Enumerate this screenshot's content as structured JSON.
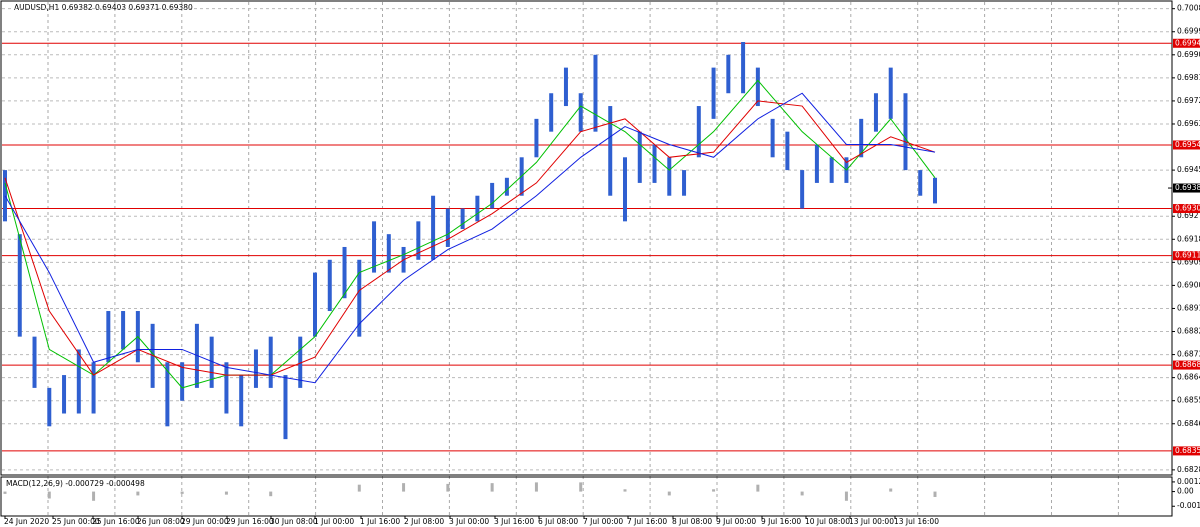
{
  "chart_data": {
    "type": "ohlc",
    "title": "AUDUSD,H1  0.69382 0.69403 0.69371 0.69380",
    "bar_color": "#2f5fd0",
    "bars": {
      "low": [
        0.6925,
        0.688,
        0.686,
        0.6845,
        0.685,
        0.685,
        0.685,
        0.687,
        0.6875,
        0.687,
        0.686,
        0.6845,
        0.6855,
        0.686,
        0.686,
        0.685,
        0.6845,
        0.686,
        0.686,
        0.684,
        0.686,
        0.688,
        0.689,
        0.6895,
        0.688,
        0.6905,
        0.6905,
        0.6905,
        0.691,
        0.691,
        0.6915,
        0.6922,
        0.6925,
        0.693,
        0.6935,
        0.6935,
        0.695,
        0.696,
        0.697,
        0.696,
        0.696,
        0.6935,
        0.6925,
        0.694,
        0.694,
        0.6935,
        0.6935,
        0.695,
        0.6965,
        0.6975,
        0.6975,
        0.697,
        0.695,
        0.6945,
        0.693,
        0.694,
        0.694,
        0.694,
        0.695,
        0.696,
        0.6965,
        0.6945,
        0.6935,
        0.6932
      ],
      "high": [
        0.6945,
        0.692,
        0.688,
        0.686,
        0.6865,
        0.6875,
        0.687,
        0.689,
        0.689,
        0.689,
        0.6885,
        0.687,
        0.687,
        0.6885,
        0.688,
        0.687,
        0.6865,
        0.6875,
        0.688,
        0.6865,
        0.688,
        0.6905,
        0.691,
        0.6915,
        0.691,
        0.6925,
        0.692,
        0.6915,
        0.6925,
        0.6935,
        0.693,
        0.693,
        0.6935,
        0.694,
        0.6942,
        0.695,
        0.6965,
        0.6975,
        0.6985,
        0.6975,
        0.699,
        0.697,
        0.695,
        0.696,
        0.6955,
        0.695,
        0.6945,
        0.697,
        0.6985,
        0.699,
        0.6995,
        0.6985,
        0.6965,
        0.696,
        0.6945,
        0.6955,
        0.695,
        0.695,
        0.6965,
        0.6975,
        0.6985,
        0.6975,
        0.6945,
        0.6942
      ]
    },
    "series": [
      {
        "color": "#00c000",
        "values": [
          0.694,
          0.6875,
          0.6865,
          0.688,
          0.686,
          0.6865,
          0.6865,
          0.688,
          0.6905,
          0.6912,
          0.692,
          0.6932,
          0.6948,
          0.697,
          0.696,
          0.6945,
          0.696,
          0.698,
          0.696,
          0.6945,
          0.6965,
          0.6942
        ]
      },
      {
        "color": "#e00000",
        "values": [
          0.6942,
          0.689,
          0.6865,
          0.6875,
          0.6868,
          0.6865,
          0.6865,
          0.6872,
          0.6898,
          0.691,
          0.6918,
          0.6928,
          0.694,
          0.696,
          0.6965,
          0.695,
          0.6952,
          0.6972,
          0.697,
          0.6948,
          0.6958,
          0.6952
        ]
      },
      {
        "color": "#1020e0",
        "values": [
          0.6935,
          0.6905,
          0.687,
          0.6875,
          0.6875,
          0.6868,
          0.6865,
          0.6862,
          0.6885,
          0.6902,
          0.6914,
          0.6922,
          0.6935,
          0.695,
          0.6962,
          0.6955,
          0.695,
          0.6965,
          0.6975,
          0.6955,
          0.6955,
          0.6952
        ]
      }
    ],
    "ylim": [
      0.6826,
      0.7011
    ],
    "yticks": [
      {
        "value": 0.7008,
        "label": "0.70080"
      },
      {
        "value": 0.6999,
        "label": "0.69990"
      },
      {
        "value": 0.699,
        "label": "0.69900"
      },
      {
        "value": 0.6981,
        "label": "0.69810"
      },
      {
        "value": 0.6972,
        "label": "0.69720"
      },
      {
        "value": 0.6963,
        "label": "0.69630"
      },
      {
        "value": 0.6945,
        "label": "0.69450"
      },
      {
        "value": 0.6927,
        "label": "0.69270"
      },
      {
        "value": 0.6918,
        "label": "0.69180"
      },
      {
        "value": 0.6909,
        "label": "0.69090"
      },
      {
        "value": 0.69,
        "label": "0.69000"
      },
      {
        "value": 0.6891,
        "label": "0.68910"
      },
      {
        "value": 0.6882,
        "label": "0.68820"
      },
      {
        "value": 0.6873,
        "label": "0.68730"
      },
      {
        "value": 0.6864,
        "label": "0.68640"
      },
      {
        "value": 0.6855,
        "label": "0.68550"
      },
      {
        "value": 0.6846,
        "label": "0.68460"
      },
      {
        "value": 0.6828,
        "label": "0.68280"
      }
    ],
    "levels": [
      {
        "value": 0.69945,
        "label": "0.69945"
      },
      {
        "value": 0.69548,
        "label": "0.69548"
      },
      {
        "value": 0.693,
        "label": "0.69300"
      },
      {
        "value": 0.69116,
        "label": "0.69116"
      },
      {
        "value": 0.68689,
        "label": "0.68689"
      },
      {
        "value": 0.68354,
        "label": "0.68354"
      }
    ],
    "level_color": "#e00000",
    "current_price": {
      "value": 0.6938,
      "label": "0.69380"
    },
    "grid": true,
    "time_labels": [
      "24 Jun 2020",
      "25 Jun 00:00",
      "25 Jun 16:00",
      "26 Jun 08:00",
      "29 Jun 00:00",
      "29 Jun 16:00",
      "30 Jun 08:00",
      "1 Jul 00:00",
      "1 Jul 16:00",
      "2 Jul 08:00",
      "3 Jul 00:00",
      "3 Jul 16:00",
      "6 Jul 08:00",
      "7 Jul 00:00",
      "7 Jul 16:00",
      "8 Jul 08:00",
      "9 Jul 00:00",
      "9 Jul 16:00",
      "10 Jul 08:00",
      "13 Jul 00:00",
      "13 Jul 16:00"
    ],
    "macd": {
      "label": "MACD(12,26,9) -0.000729 -0.000498",
      "color": "#b0b0b0",
      "values": [
        -0.0003,
        -0.0009,
        -0.0012,
        -0.0005,
        -0.0003,
        -0.0004,
        -0.0006,
        0.0001,
        0.0009,
        0.0011,
        0.001,
        0.0011,
        0.0012,
        0.0012,
        0.0003,
        -0.0005,
        0.0003,
        0.0009,
        -0.0005,
        -0.0012,
        0.0004,
        -0.0007
      ],
      "ylim": [
        -0.00305,
        0.00177
      ],
      "yticks": [
        {
          "value": 0.00126,
          "label": "0.00126"
        },
        {
          "value": 0,
          "label": "0.00"
        },
        {
          "value": -0.00191,
          "label": "-0.00191"
        }
      ]
    }
  }
}
